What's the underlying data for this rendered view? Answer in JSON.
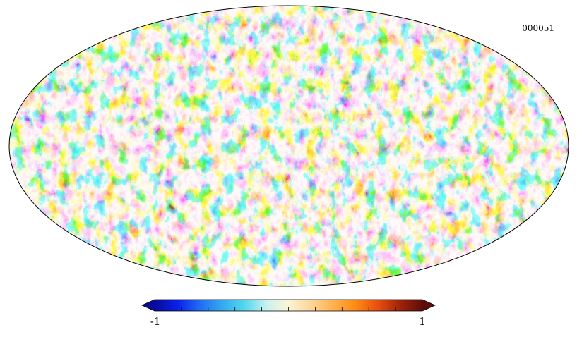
{
  "map": {
    "label": "000051",
    "projection": "mollweide",
    "background": "#ffffff",
    "outline_color": "#000000"
  },
  "colorbar": {
    "min_label": "-1",
    "max_label": "1",
    "min": -1,
    "max": 1,
    "ticks": [
      -0.8,
      -0.6,
      -0.4,
      -0.2,
      0,
      0.2,
      0.4,
      0.6,
      0.8
    ],
    "colors": [
      "#0a0a9a",
      "#0b1fe8",
      "#1f6cf2",
      "#33a8f0",
      "#4fd7ee",
      "#c8f1f1",
      "#fbf5d2",
      "#fdd59a",
      "#ffb24d",
      "#ff8a14",
      "#e8500e",
      "#a0230b",
      "#5e0e0a"
    ],
    "extends": "both"
  }
}
